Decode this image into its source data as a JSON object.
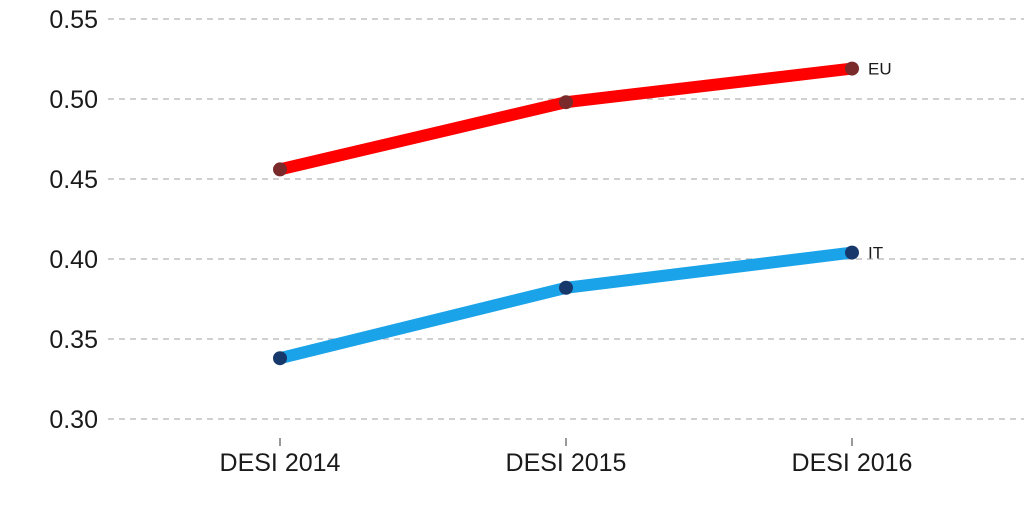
{
  "chart_data": {
    "type": "line",
    "title": "",
    "xlabel": "",
    "ylabel": "",
    "categories": [
      "DESI 2014",
      "DESI 2015",
      "DESI 2016"
    ],
    "ylim": [
      0.3,
      0.55
    ],
    "yticks": [
      0.3,
      0.35,
      0.4,
      0.45,
      0.5,
      0.55
    ],
    "ytick_labels": [
      "0.30",
      "0.35",
      "0.40",
      "0.45",
      "0.50",
      "0.55"
    ],
    "grid": "horizontal-dashed",
    "legend": "none",
    "series": [
      {
        "name": "EU",
        "values": [
          0.456,
          0.498,
          0.519
        ],
        "line_color": "#ff0000",
        "marker_color": "#7a2a2a"
      },
      {
        "name": "IT",
        "values": [
          0.338,
          0.382,
          0.404
        ],
        "line_color": "#1aa3e8",
        "marker_color": "#17386b"
      }
    ]
  }
}
